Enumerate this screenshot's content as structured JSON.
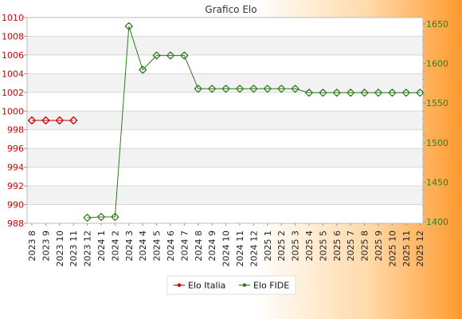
{
  "chart_data": {
    "type": "line",
    "title": "Grafico Elo",
    "categories": [
      "2023 8",
      "2023 9",
      "2023 10",
      "2023 11",
      "2023 12",
      "2024 1",
      "2024 2",
      "2024 3",
      "2024 4",
      "2024 5",
      "2024 6",
      "2024 7",
      "2024 8",
      "2024 9",
      "2024 10",
      "2024 11",
      "2024 12",
      "2025 1",
      "2025 2",
      "2025 3",
      "2025 4",
      "2025 5",
      "2025 6",
      "2025 7",
      "2025 8",
      "2025 9",
      "2025 10",
      "2025 11",
      "2025 12"
    ],
    "y_left": {
      "ylim": [
        988,
        1010
      ],
      "ticks": [
        988,
        990,
        992,
        994,
        996,
        998,
        1000,
        1002,
        1004,
        1006,
        1008,
        1010
      ],
      "color": "#cc0000"
    },
    "y_right": {
      "ylim": [
        1398,
        1658
      ],
      "ticks": [
        1400,
        1450,
        1500,
        1550,
        1600,
        1650
      ],
      "color": "#2f7d1e"
    },
    "grid": true,
    "legend_position": "bottom-center",
    "series": [
      {
        "name": "Elo Italia",
        "axis": "left",
        "color": "#cc0000",
        "values": [
          999,
          999,
          999,
          999,
          null,
          null,
          null,
          null,
          null,
          null,
          null,
          null,
          null,
          null,
          null,
          null,
          null,
          null,
          null,
          null,
          null,
          null,
          null,
          null,
          null,
          null,
          null,
          null,
          null
        ]
      },
      {
        "name": "Elo FIDE",
        "axis": "right",
        "color": "#2f7d1e",
        "values": [
          null,
          null,
          null,
          null,
          1405,
          1406,
          1406,
          1647,
          1592,
          1610,
          1610,
          1610,
          1568,
          1568,
          1568,
          1568,
          1568,
          1568,
          1568,
          1568,
          1563,
          1563,
          1563,
          1563,
          1563,
          1563,
          1563,
          1563,
          1563
        ]
      }
    ]
  }
}
